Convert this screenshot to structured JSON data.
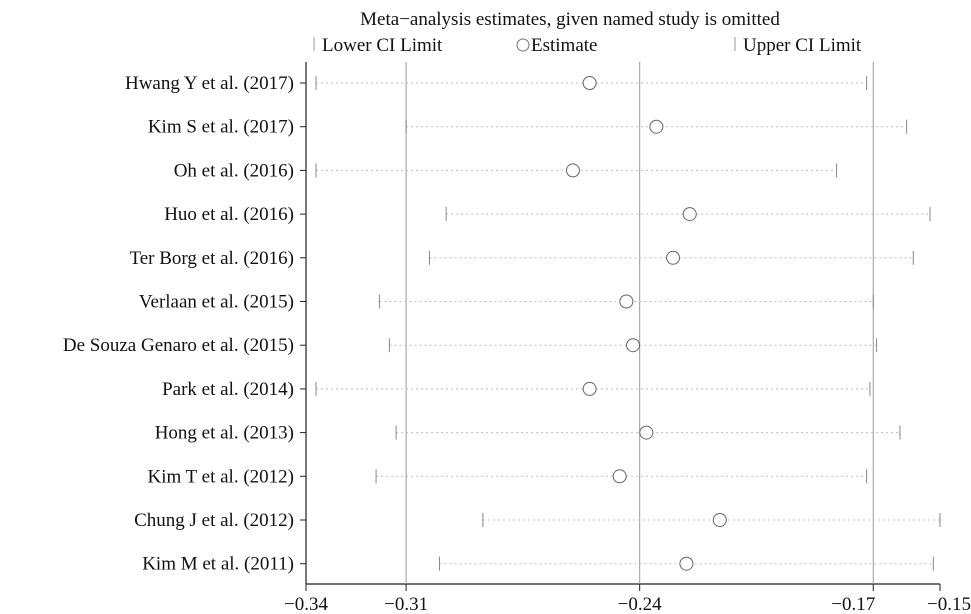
{
  "chart_data": {
    "type": "scatter",
    "title": "Meta−analysis estimates, given named study is omitted",
    "legend": {
      "placement": "top",
      "lower_label": "Lower CI Limit",
      "estimate_label": "Estimate",
      "upper_label": "Upper CI Limit"
    },
    "xlim": [
      -0.34,
      -0.15
    ],
    "xticks": [
      {
        "value": -0.34,
        "label": "−0.34"
      },
      {
        "value": -0.31,
        "label": "−0.31"
      },
      {
        "value": -0.24,
        "label": "−0.24"
      },
      {
        "value": -0.17,
        "label": "−0.17"
      },
      {
        "value": -0.15,
        "label": "−0.15"
      }
    ],
    "reference_lines": [
      -0.31,
      -0.24,
      -0.17
    ],
    "grid": false,
    "studies": [
      {
        "name": "Hwang Y et al. (2017)",
        "lower": -0.337,
        "estimate": -0.255,
        "upper": -0.172
      },
      {
        "name": "Kim S et al. (2017)",
        "lower": -0.31,
        "estimate": -0.235,
        "upper": -0.16
      },
      {
        "name": "Oh et al. (2016)",
        "lower": -0.337,
        "estimate": -0.26,
        "upper": -0.181
      },
      {
        "name": "Huo et al. (2016)",
        "lower": -0.298,
        "estimate": -0.225,
        "upper": -0.153
      },
      {
        "name": "Ter Borg et al. (2016)",
        "lower": -0.303,
        "estimate": -0.23,
        "upper": -0.158
      },
      {
        "name": "Verlaan et al. (2015)",
        "lower": -0.318,
        "estimate": -0.244,
        "upper": -0.17
      },
      {
        "name": "De Souza Genaro et al. (2015)",
        "lower": -0.315,
        "estimate": -0.242,
        "upper": -0.169
      },
      {
        "name": "Park et al. (2014)",
        "lower": -0.337,
        "estimate": -0.255,
        "upper": -0.171
      },
      {
        "name": "Hong et al. (2013)",
        "lower": -0.313,
        "estimate": -0.238,
        "upper": -0.162
      },
      {
        "name": "Kim T et al. (2012)",
        "lower": -0.319,
        "estimate": -0.246,
        "upper": -0.172
      },
      {
        "name": "Chung J et al. (2012)",
        "lower": -0.287,
        "estimate": -0.216,
        "upper": -0.15
      },
      {
        "name": "Kim M et al. (2011)",
        "lower": -0.3,
        "estimate": -0.226,
        "upper": -0.152
      }
    ]
  }
}
